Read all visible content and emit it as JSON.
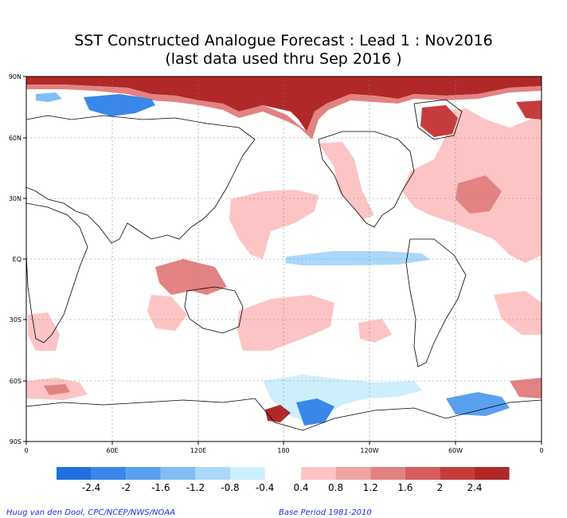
{
  "title": {
    "line1": "SST Constructed Analogue Forecast : Lead 1 : Nov2016",
    "line2": "(last data used thru Sep 2016 )"
  },
  "axes": {
    "lat_ticks": [
      "90N",
      "60N",
      "30N",
      "EQ",
      "30S",
      "60S",
      "90S"
    ],
    "lon_ticks": [
      "0",
      "60E",
      "120E",
      "180",
      "120W",
      "60W",
      "0"
    ]
  },
  "colorbar": {
    "negative_colors": [
      "#1f6fe0",
      "#3a86ea",
      "#5aa0f0",
      "#82bdf5",
      "#abd8fa",
      "#cdeffc"
    ],
    "positive_colors": [
      "#fcc4c4",
      "#f0a3a3",
      "#e38282",
      "#d65d5d",
      "#c63c3c",
      "#b02828"
    ],
    "labels": [
      "-2.4",
      "-2",
      "-1.6",
      "-1.2",
      "-0.8",
      "-0.4",
      "0.4",
      "0.8",
      "1.2",
      "1.6",
      "2",
      "2.4"
    ]
  },
  "credits": {
    "left": "Huug van den Dool, CPC/NCEP/NWS/NOAA",
    "right": "Base Period 1981-2010"
  }
}
